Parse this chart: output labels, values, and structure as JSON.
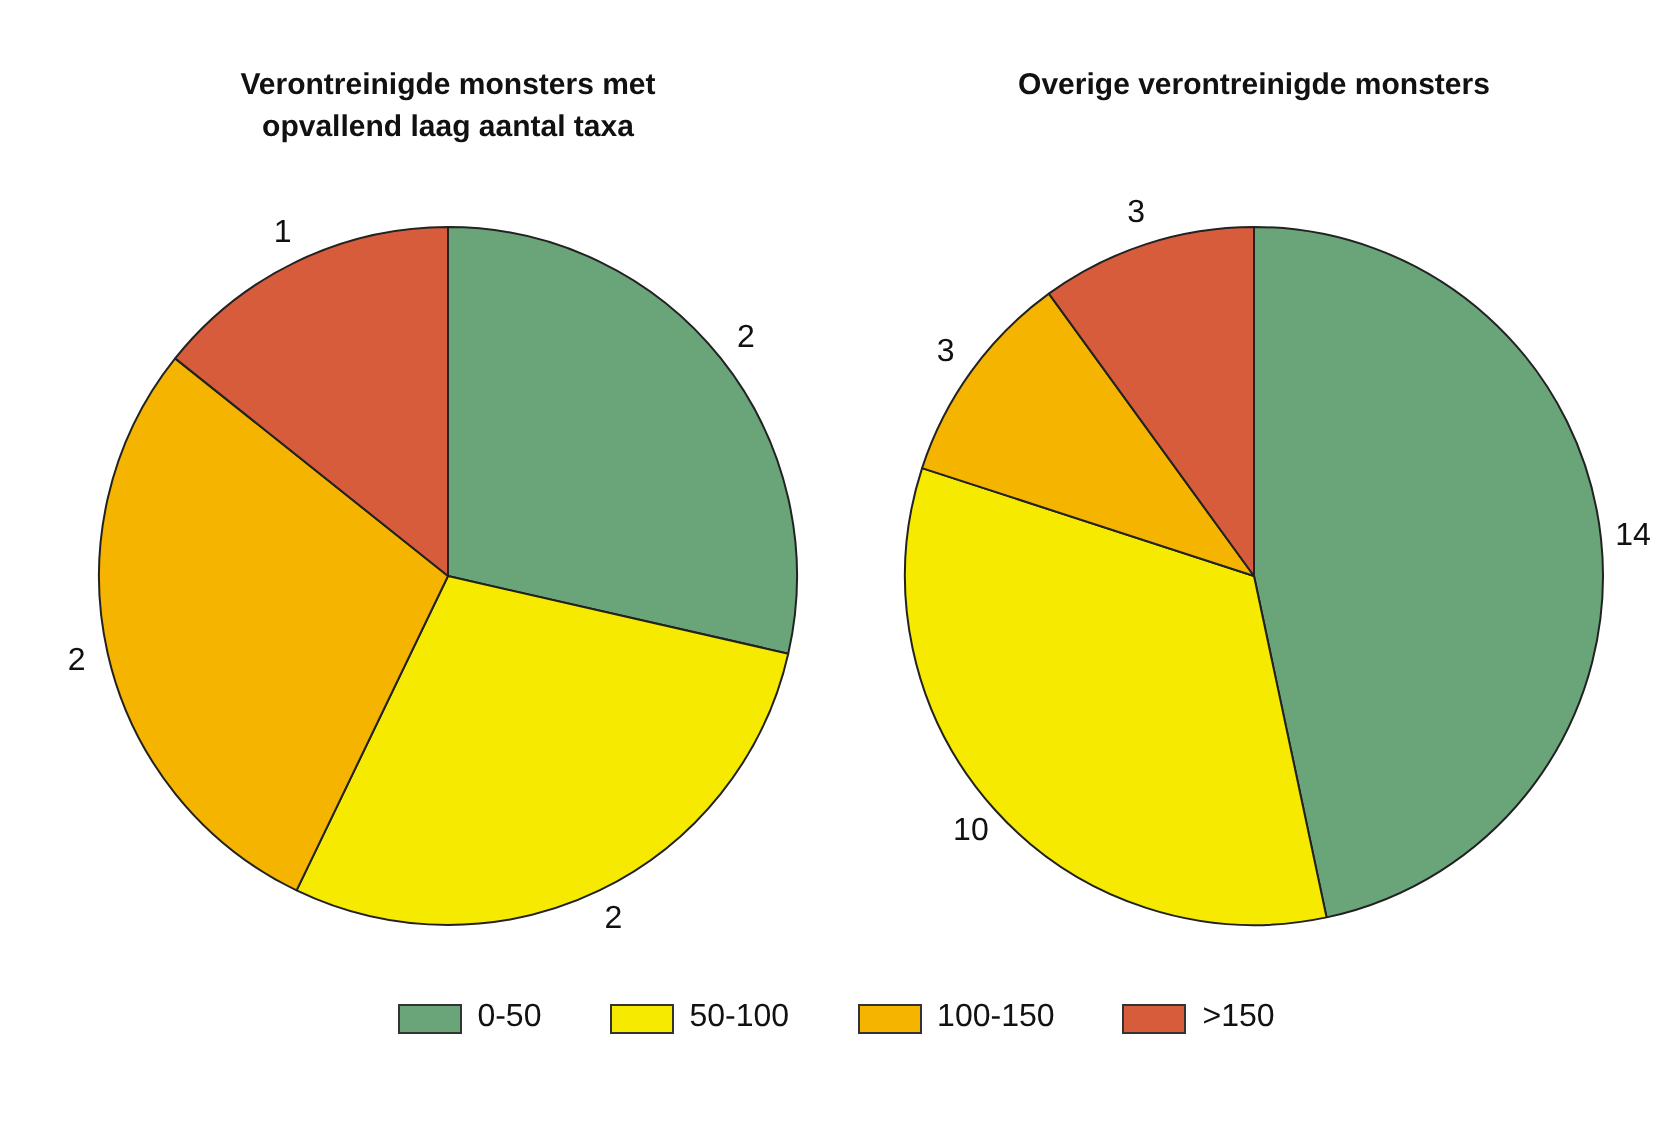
{
  "chart_data": [
    {
      "type": "pie",
      "title": "Verontreinigde monsters met opvallend laag aantal taxa",
      "categories": [
        null,
        null,
        null,
        null
      ],
      "values": [
        2,
        2,
        2,
        1
      ],
      "colors": [
        "#6aa57a",
        "#f5ea00",
        "#f4b400",
        "#d65c3c"
      ],
      "data_labels": true
    },
    {
      "type": "pie",
      "title": "Overige verontreinigde monsters",
      "categories": [
        "0-50",
        "50-100",
        "100-150",
        ">150"
      ],
      "values": [
        14,
        10,
        3,
        3
      ],
      "colors": [
        "#6aa57a",
        "#f5ea00",
        "#f4b400",
        "#d65c3c"
      ],
      "data_labels": true,
      "legend": "bottom"
    }
  ]
}
